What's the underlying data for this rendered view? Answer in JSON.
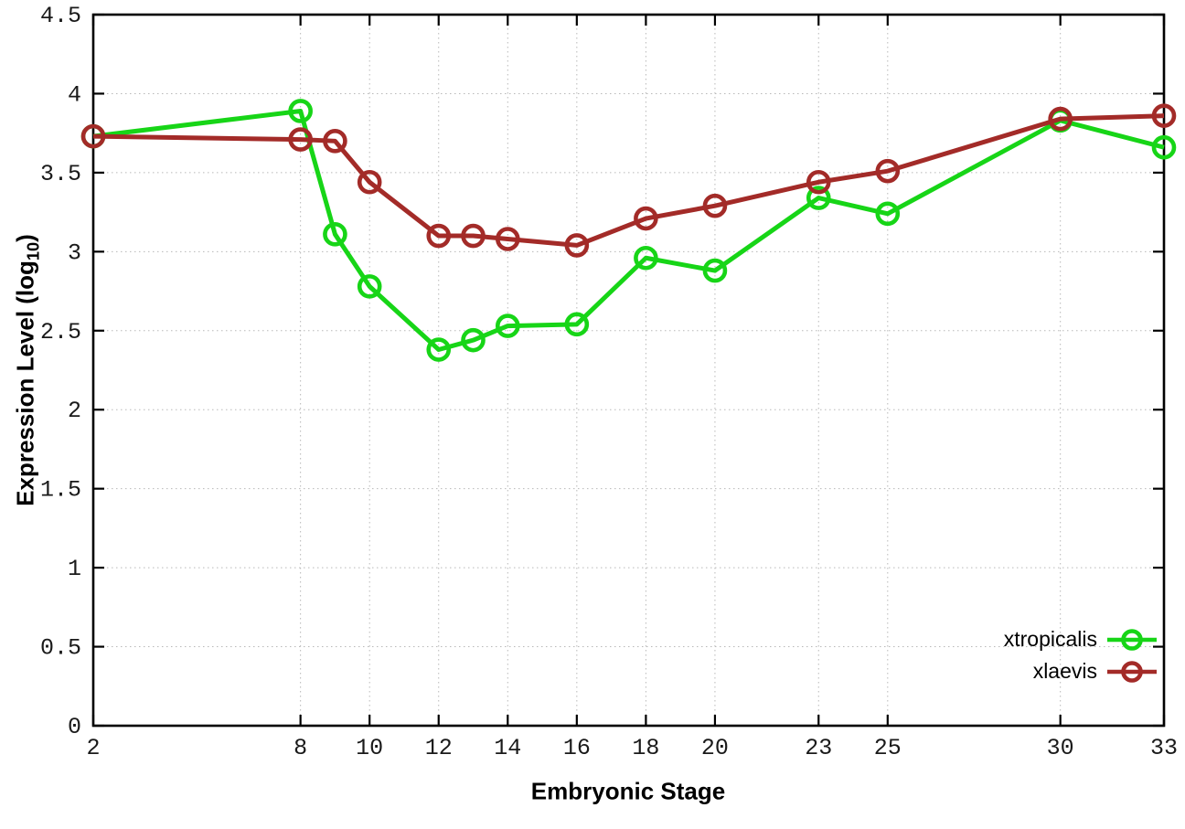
{
  "chart_data": {
    "type": "line",
    "title": "",
    "xlabel": "Embryonic Stage",
    "ylabel_prefix": "Expression Level (log",
    "ylabel_sub": "10",
    "ylabel_suffix": ")",
    "x": [
      2,
      8,
      9,
      10,
      12,
      13,
      14,
      16,
      18,
      20,
      23,
      25,
      30,
      33
    ],
    "series": [
      {
        "name": "xtropicalis",
        "color": "#17d517",
        "values": [
          3.73,
          3.89,
          3.11,
          2.78,
          2.38,
          2.44,
          2.53,
          2.54,
          2.96,
          2.88,
          3.34,
          3.24,
          3.83,
          3.66
        ]
      },
      {
        "name": "xlaevis",
        "color": "#a32b28",
        "values": [
          3.73,
          3.71,
          3.7,
          3.44,
          3.1,
          3.1,
          3.08,
          3.04,
          3.21,
          3.29,
          3.44,
          3.51,
          3.84,
          3.86
        ]
      }
    ],
    "xticks": [
      2,
      8,
      10,
      12,
      14,
      16,
      18,
      20,
      23,
      25,
      30,
      33
    ],
    "yticks": [
      0,
      0.5,
      1,
      1.5,
      2,
      2.5,
      3,
      3.5,
      4,
      4.5
    ],
    "xlim": [
      2,
      33
    ],
    "ylim": [
      0,
      4.5
    ],
    "grid": true,
    "legend_position": "bottom-right",
    "marker": "open-circle"
  }
}
